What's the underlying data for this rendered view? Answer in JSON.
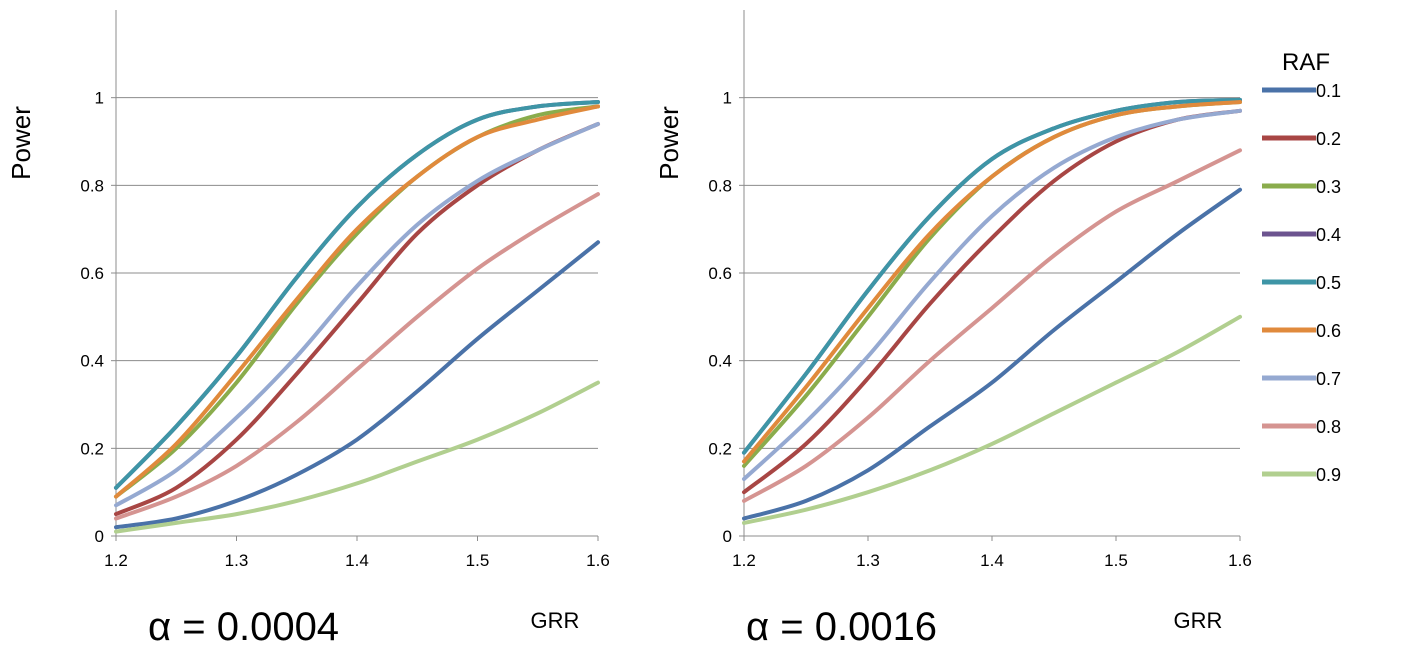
{
  "legend": {
    "title": "RAF",
    "entries": [
      {
        "label": "0.1",
        "color": "#4a72a8"
      },
      {
        "label": "0.2",
        "color": "#a84644"
      },
      {
        "label": "0.3",
        "color": "#8aac4c"
      },
      {
        "label": "0.4",
        "color": "#6c548f"
      },
      {
        "label": "0.5",
        "color": "#3e95a6"
      },
      {
        "label": "0.6",
        "color": "#e08a3c"
      },
      {
        "label": "0.7",
        "color": "#95a9d1"
      },
      {
        "label": "0.8",
        "color": "#d59491"
      },
      {
        "label": "0.9",
        "color": "#b1cf8f"
      }
    ]
  },
  "chart_data": [
    {
      "type": "line",
      "caption": "α = 0.0004",
      "xlabel": "GRR",
      "ylabel": "Power",
      "xlim": [
        1.2,
        1.6
      ],
      "ylim": [
        0,
        1.2
      ],
      "xticks": [
        "1.2",
        "1.3",
        "1.4",
        "1.5",
        "1.6"
      ],
      "yticks": [
        "0",
        "0.2",
        "0.4",
        "0.6",
        "0.8",
        "1"
      ],
      "grid": true,
      "x": [
        1.2,
        1.25,
        1.3,
        1.35,
        1.4,
        1.45,
        1.5,
        1.55,
        1.6
      ],
      "series": [
        {
          "name": "0.1",
          "color": "#4a72a8",
          "values": [
            0.02,
            0.04,
            0.08,
            0.14,
            0.22,
            0.33,
            0.45,
            0.56,
            0.67
          ]
        },
        {
          "name": "0.2",
          "color": "#a84644",
          "values": [
            0.05,
            0.11,
            0.22,
            0.37,
            0.53,
            0.69,
            0.8,
            0.88,
            0.94
          ]
        },
        {
          "name": "0.3",
          "color": "#8aac4c",
          "values": [
            0.09,
            0.2,
            0.35,
            0.53,
            0.69,
            0.82,
            0.91,
            0.96,
            0.98
          ]
        },
        {
          "name": "0.4",
          "color": "#6c548f",
          "values": [
            0.11,
            0.25,
            0.41,
            0.59,
            0.75,
            0.87,
            0.95,
            0.98,
            0.99
          ]
        },
        {
          "name": "0.5",
          "color": "#3e95a6",
          "values": [
            0.11,
            0.25,
            0.41,
            0.59,
            0.75,
            0.87,
            0.95,
            0.98,
            0.99
          ]
        },
        {
          "name": "0.6",
          "color": "#e08a3c",
          "values": [
            0.09,
            0.21,
            0.37,
            0.54,
            0.7,
            0.82,
            0.91,
            0.95,
            0.98
          ]
        },
        {
          "name": "0.7",
          "color": "#95a9d1",
          "values": [
            0.07,
            0.15,
            0.27,
            0.41,
            0.57,
            0.71,
            0.81,
            0.88,
            0.94
          ]
        },
        {
          "name": "0.8",
          "color": "#d59491",
          "values": [
            0.04,
            0.09,
            0.16,
            0.26,
            0.38,
            0.5,
            0.61,
            0.7,
            0.78
          ]
        },
        {
          "name": "0.9",
          "color": "#b1cf8f",
          "values": [
            0.01,
            0.03,
            0.05,
            0.08,
            0.12,
            0.17,
            0.22,
            0.28,
            0.35
          ]
        }
      ]
    },
    {
      "type": "line",
      "caption": "α = 0.0016",
      "xlabel": "GRR",
      "ylabel": "Power",
      "xlim": [
        1.2,
        1.6
      ],
      "ylim": [
        0,
        1.2
      ],
      "xticks": [
        "1.2",
        "1.3",
        "1.4",
        "1.5",
        "1.6"
      ],
      "yticks": [
        "0",
        "0.2",
        "0.4",
        "0.6",
        "0.8",
        "1"
      ],
      "grid": true,
      "x": [
        1.2,
        1.25,
        1.3,
        1.35,
        1.4,
        1.45,
        1.5,
        1.55,
        1.6
      ],
      "series": [
        {
          "name": "0.1",
          "color": "#4a72a8",
          "values": [
            0.04,
            0.08,
            0.15,
            0.25,
            0.35,
            0.47,
            0.58,
            0.69,
            0.79
          ]
        },
        {
          "name": "0.2",
          "color": "#a84644",
          "values": [
            0.1,
            0.21,
            0.36,
            0.53,
            0.68,
            0.81,
            0.9,
            0.95,
            0.97
          ]
        },
        {
          "name": "0.3",
          "color": "#8aac4c",
          "values": [
            0.16,
            0.32,
            0.5,
            0.68,
            0.82,
            0.91,
            0.96,
            0.98,
            0.99
          ]
        },
        {
          "name": "0.4",
          "color": "#6c548f",
          "values": [
            0.19,
            0.37,
            0.56,
            0.73,
            0.86,
            0.93,
            0.97,
            0.99,
            0.995
          ]
        },
        {
          "name": "0.5",
          "color": "#3e95a6",
          "values": [
            0.19,
            0.37,
            0.56,
            0.73,
            0.86,
            0.93,
            0.97,
            0.99,
            0.995
          ]
        },
        {
          "name": "0.6",
          "color": "#e08a3c",
          "values": [
            0.17,
            0.34,
            0.52,
            0.69,
            0.82,
            0.91,
            0.96,
            0.98,
            0.99
          ]
        },
        {
          "name": "0.7",
          "color": "#95a9d1",
          "values": [
            0.13,
            0.26,
            0.41,
            0.58,
            0.73,
            0.84,
            0.91,
            0.95,
            0.97
          ]
        },
        {
          "name": "0.8",
          "color": "#d59491",
          "values": [
            0.08,
            0.16,
            0.27,
            0.4,
            0.52,
            0.64,
            0.74,
            0.81,
            0.88
          ]
        },
        {
          "name": "0.9",
          "color": "#b1cf8f",
          "values": [
            0.03,
            0.06,
            0.1,
            0.15,
            0.21,
            0.28,
            0.35,
            0.42,
            0.5
          ]
        }
      ]
    }
  ]
}
